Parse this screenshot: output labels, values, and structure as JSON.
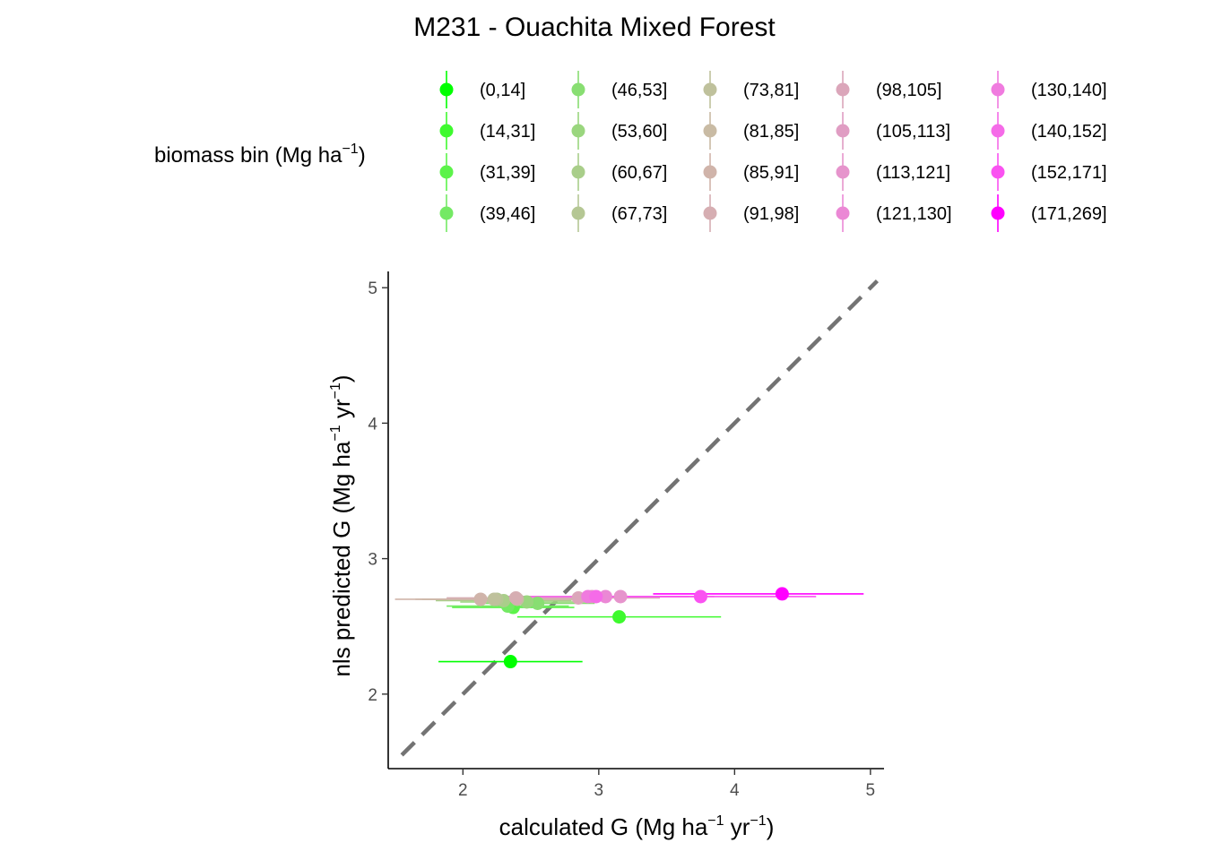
{
  "chart_data": {
    "type": "scatter",
    "title": "M231 - Ouachita Mixed Forest",
    "xlabel": {
      "text": "calculated G (Mg ha",
      "sup1": "−1",
      "mid": " yr",
      "sup2": "−1",
      "end": ")"
    },
    "ylabel": {
      "text": "nls predicted G (Mg ha",
      "sup1": "−1",
      "mid": " yr",
      "sup2": "−1",
      "end": ")"
    },
    "legend_title": {
      "text": "biomass bin (Mg ha",
      "sup": "−1",
      "end": ")"
    },
    "legend_position": "top",
    "xlim": [
      1.45,
      5.1
    ],
    "ylim": [
      1.45,
      5.12
    ],
    "x_ticks": [
      2,
      3,
      4,
      5
    ],
    "y_ticks": [
      2,
      3,
      4,
      5
    ],
    "grid": false,
    "reference_line": {
      "slope": 1,
      "intercept": 0,
      "style": "dashed",
      "color": "#737373"
    },
    "series": [
      {
        "name": "(0,14]",
        "color": "#00FF00",
        "x": 2.35,
        "y": 2.24,
        "xmin": 1.82,
        "xmax": 2.88
      },
      {
        "name": "(14,31]",
        "color": "#3EFA2E",
        "x": 3.15,
        "y": 2.57,
        "xmin": 2.4,
        "xmax": 3.9
      },
      {
        "name": "(31,39]",
        "color": "#5CF34A",
        "x": 2.37,
        "y": 2.64,
        "xmin": 1.92,
        "xmax": 2.82
      },
      {
        "name": "(39,46]",
        "color": "#74E964",
        "x": 2.33,
        "y": 2.65,
        "xmin": 1.88,
        "xmax": 2.78
      },
      {
        "name": "(46,53]",
        "color": "#88DE72",
        "x": 2.55,
        "y": 2.67,
        "xmin": 2.1,
        "xmax": 2.97
      },
      {
        "name": "(53,60]",
        "color": "#9AD67E",
        "x": 2.47,
        "y": 2.68,
        "xmin": 1.98,
        "xmax": 2.95
      },
      {
        "name": "(60,67]",
        "color": "#A9CE8A",
        "x": 2.3,
        "y": 2.69,
        "xmin": 1.8,
        "xmax": 2.8
      },
      {
        "name": "(67,73]",
        "color": "#B5C794",
        "x": 2.25,
        "y": 2.7,
        "xmin": 1.7,
        "xmax": 2.8
      },
      {
        "name": "(73,81]",
        "color": "#BFC19C",
        "x": 2.23,
        "y": 2.7,
        "xmin": 1.65,
        "xmax": 2.82
      },
      {
        "name": "(81,85]",
        "color": "#C9BBA4",
        "x": 2.4,
        "y": 2.7,
        "xmin": 1.85,
        "xmax": 2.95
      },
      {
        "name": "(85,91]",
        "color": "#D0B4AA",
        "x": 2.13,
        "y": 2.7,
        "xmin": 1.5,
        "xmax": 2.78
      },
      {
        "name": "(91,98]",
        "color": "#D6AEB2",
        "x": 2.39,
        "y": 2.71,
        "xmin": 1.88,
        "xmax": 2.9
      },
      {
        "name": "(98,105]",
        "color": "#DBA6BA",
        "x": 2.85,
        "y": 2.71,
        "xmin": 2.25,
        "xmax": 3.45
      },
      {
        "name": "(105,113]",
        "color": "#E09DC3",
        "x": 2.95,
        "y": 2.72,
        "xmin": 2.3,
        "xmax": 3.6
      },
      {
        "name": "(113,121]",
        "color": "#E694CC",
        "x": 3.16,
        "y": 2.72,
        "xmin": 2.45,
        "xmax": 3.85
      },
      {
        "name": "(121,130]",
        "color": "#EB88D5",
        "x": 3.05,
        "y": 2.72,
        "xmin": 2.35,
        "xmax": 3.75
      },
      {
        "name": "(130,140]",
        "color": "#F07BDF",
        "x": 2.92,
        "y": 2.72,
        "xmin": 2.25,
        "xmax": 3.6
      },
      {
        "name": "(140,152]",
        "color": "#F56BE8",
        "x": 2.98,
        "y": 2.72,
        "xmin": 2.3,
        "xmax": 3.66
      },
      {
        "name": "(152,171]",
        "color": "#FA52F1",
        "x": 3.75,
        "y": 2.72,
        "xmin": 2.9,
        "xmax": 4.6
      },
      {
        "name": "(171,269]",
        "color": "#FF00FF",
        "x": 4.35,
        "y": 2.74,
        "xmin": 3.4,
        "xmax": 4.95
      }
    ]
  }
}
